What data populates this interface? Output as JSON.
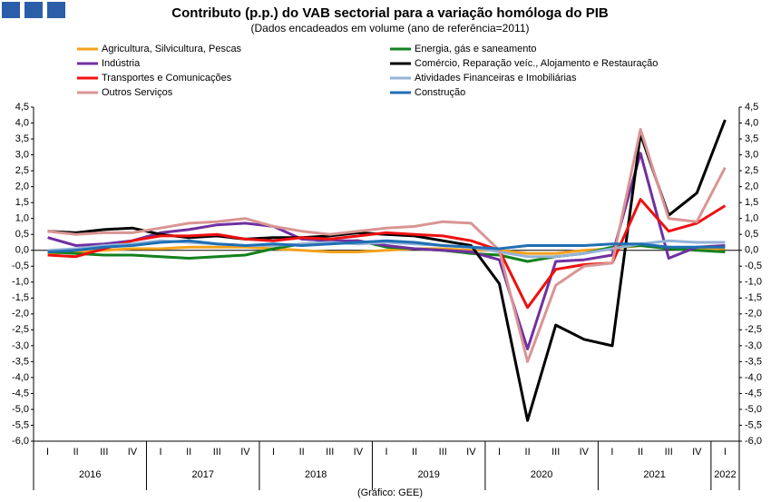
{
  "chart_data": {
    "type": "line",
    "title": "Contributo (p.p.) do VAB sectorial para a variação homóloga do PIB",
    "subtitle": "(Dados encadeados em volume (ano de referência=2011)",
    "source": "(Gráfico: GEE)",
    "categories": [
      "I",
      "II",
      "III",
      "IV",
      "I",
      "II",
      "III",
      "IV",
      "I",
      "II",
      "III",
      "IV",
      "I",
      "II",
      "III",
      "IV",
      "I",
      "II",
      "III",
      "IV",
      "I",
      "II",
      "III",
      "IV",
      "I"
    ],
    "years": [
      "2016",
      "2017",
      "2018",
      "2019",
      "2020",
      "2021",
      "2022"
    ],
    "ylim": [
      -6,
      4.5
    ],
    "yticks": [
      {
        "value": 4.5,
        "label": "4,5"
      },
      {
        "value": 4,
        "label": "4,0"
      },
      {
        "value": 3.5,
        "label": "3,5"
      },
      {
        "value": 3,
        "label": "3,0"
      },
      {
        "value": 2.5,
        "label": "2,5"
      },
      {
        "value": 2,
        "label": "2,0"
      },
      {
        "value": 1.5,
        "label": "1,5"
      },
      {
        "value": 1,
        "label": "1,0"
      },
      {
        "value": 0.5,
        "label": "0,5"
      },
      {
        "value": 0,
        "label": "0,0"
      },
      {
        "value": -0.5,
        "label": "-0,5"
      },
      {
        "value": -1,
        "label": "-1,0"
      },
      {
        "value": -1.5,
        "label": "-1,5"
      },
      {
        "value": -2,
        "label": "-2,0"
      },
      {
        "value": -2.5,
        "label": "-2,5"
      },
      {
        "value": -3,
        "label": "-3,0"
      },
      {
        "value": -3.5,
        "label": "-3,5"
      },
      {
        "value": -4,
        "label": "-4,0"
      },
      {
        "value": -4.5,
        "label": "-4,5"
      },
      {
        "value": -5,
        "label": "-5,0"
      },
      {
        "value": -5.5,
        "label": "-5,5"
      },
      {
        "value": -6,
        "label": "-6,0"
      }
    ],
    "series": [
      {
        "name": "Agricultura, Silvicultura, Pescas",
        "color": "#f5a21c",
        "values": [
          -0.1,
          -0.05,
          0,
          0.05,
          0.05,
          0.1,
          0.1,
          0.1,
          0.05,
          0,
          -0.05,
          -0.05,
          0,
          0.05,
          0.05,
          0,
          0,
          -0.1,
          -0.1,
          0,
          0.05,
          0.15,
          0.1,
          0.05,
          0.05
        ]
      },
      {
        "name": "Energia, gás e saneamento",
        "color": "#13801e",
        "values": [
          -0.05,
          -0.1,
          -0.15,
          -0.15,
          -0.2,
          -0.25,
          -0.2,
          -0.15,
          0.05,
          0.2,
          0.25,
          0.3,
          0.1,
          0.05,
          0,
          -0.1,
          -0.15,
          -0.35,
          -0.2,
          -0.1,
          0.1,
          0.15,
          0.05,
          0,
          -0.05
        ]
      },
      {
        "name": "Indústria",
        "color": "#7030a0",
        "values": [
          0.4,
          0.15,
          0.2,
          0.3,
          0.55,
          0.65,
          0.8,
          0.85,
          0.75,
          0.35,
          0.3,
          0.3,
          0.15,
          0.05,
          0,
          -0.05,
          -0.3,
          -3.1,
          -0.35,
          -0.3,
          -0.15,
          3.05,
          -0.25,
          0.1,
          0.15
        ]
      },
      {
        "name": "Comércio, Reparação veíc., Alojamento e Restauração",
        "color": "#000000",
        "values": [
          0.6,
          0.55,
          0.65,
          0.7,
          0.5,
          0.4,
          0.45,
          0.35,
          0.4,
          0.4,
          0.45,
          0.55,
          0.5,
          0.45,
          0.3,
          0.15,
          -1.05,
          -5.35,
          -2.35,
          -2.8,
          -3.0,
          3.65,
          1.1,
          1.8,
          4.1
        ]
      },
      {
        "name": "Transportes e Comunicações",
        "color": "#ee1111",
        "values": [
          -0.15,
          -0.2,
          0.05,
          0.3,
          0.45,
          0.45,
          0.5,
          0.35,
          0.3,
          0.4,
          0.35,
          0.45,
          0.55,
          0.5,
          0.45,
          0.3,
          0,
          -1.8,
          -0.6,
          -0.45,
          -0.4,
          1.6,
          0.6,
          0.85,
          1.4
        ]
      },
      {
        "name": "Atividades Financeiras e Imobiliárias",
        "color": "#95b3d7",
        "values": [
          0,
          0.05,
          0.15,
          0.2,
          0.3,
          0.25,
          0.2,
          0.15,
          0.15,
          0.2,
          0.25,
          0.2,
          0.25,
          0.2,
          0.15,
          0.1,
          -0.05,
          -0.2,
          -0.2,
          -0.1,
          0.05,
          0.2,
          0.3,
          0.25,
          0.25
        ]
      },
      {
        "name": "Outros Serviços",
        "color": "#d99594",
        "values": [
          0.6,
          0.5,
          0.55,
          0.55,
          0.7,
          0.85,
          0.9,
          1.0,
          0.75,
          0.6,
          0.5,
          0.6,
          0.7,
          0.75,
          0.9,
          0.85,
          0,
          -3.5,
          -1.1,
          -0.5,
          -0.4,
          3.8,
          1.0,
          0.9,
          2.6
        ]
      },
      {
        "name": "Construção",
        "color": "#1f6fb4",
        "values": [
          -0.05,
          0,
          0.1,
          0.15,
          0.25,
          0.3,
          0.2,
          0.15,
          0.2,
          0.15,
          0.2,
          0.25,
          0.3,
          0.25,
          0.15,
          0.1,
          0.05,
          0.15,
          0.15,
          0.15,
          0.2,
          0.2,
          0.1,
          0.1,
          0.1
        ]
      }
    ]
  }
}
